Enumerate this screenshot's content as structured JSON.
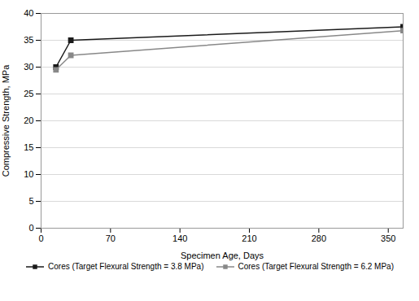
{
  "chart_data": {
    "type": "line",
    "xlabel": "Specimen Age, Days",
    "ylabel": "Compressive Strength, MPa",
    "series": [
      {
        "name": "Cores (Target Flexural Strength = 3.8 MPa)",
        "color": "#1a1a1a",
        "marker": "square",
        "line_style": "solid",
        "x": [
          15,
          30,
          365
        ],
        "values": [
          30.0,
          35.0,
          37.5
        ]
      },
      {
        "name": "Cores (Target Flexural Strength = 6.2 MPa)",
        "color": "#888888",
        "marker": "square",
        "line_style": "solid",
        "x": [
          15,
          30,
          365
        ],
        "values": [
          29.5,
          32.2,
          36.8
        ]
      }
    ],
    "xlim": [
      0,
      365
    ],
    "ylim": [
      0,
      40
    ],
    "xticks": [
      0,
      70,
      140,
      210,
      280,
      350
    ],
    "yticks": [
      0,
      5,
      10,
      15,
      20,
      25,
      30,
      35,
      40
    ],
    "grid": true,
    "legend": "bottom"
  }
}
